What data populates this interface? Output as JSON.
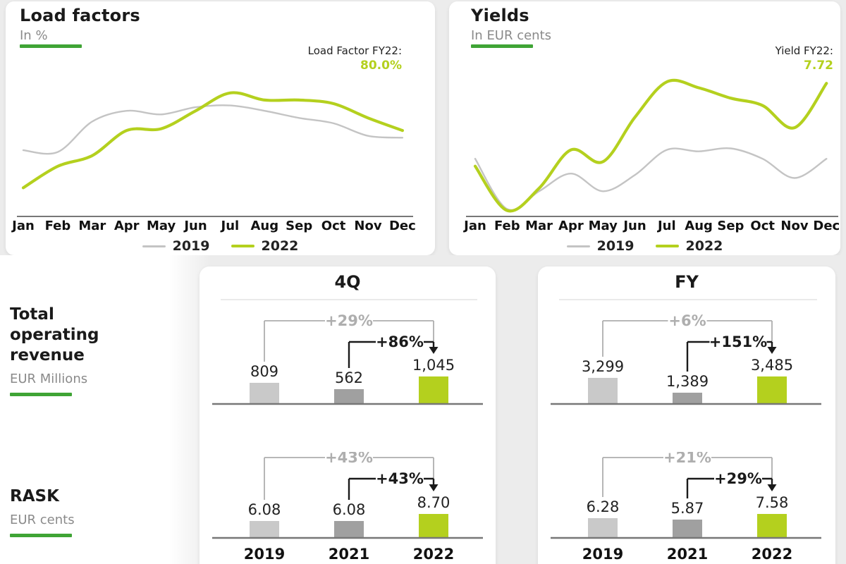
{
  "colors": {
    "green": "#b4d01e",
    "rule_green": "#3fa435",
    "line_2019": "#c4c4c4",
    "bar_2019": "#c9c9c9",
    "bar_2021": "#a0a0a0",
    "bar_2022": "#b4d01e",
    "pct_gray": "#aeaeae",
    "text_dark": "#1a1a1a",
    "text_gray": "#8a8a8a",
    "axis": "#4a4a4a",
    "baseline": "#777777",
    "page_bg": "#ececec"
  },
  "chart_data": [
    {
      "id": "load_factors",
      "type": "line",
      "title": "Load factors",
      "subtitle": "In %",
      "annotation": {
        "label": "Load Factor FY22:",
        "value": "80.0%"
      },
      "x": [
        "Jan",
        "Feb",
        "Mar",
        "Apr",
        "May",
        "Jun",
        "Jul",
        "Aug",
        "Sep",
        "Oct",
        "Nov",
        "Dec"
      ],
      "ylim": [
        54,
        92
      ],
      "grid": false,
      "legend_position": "bottom",
      "series": [
        {
          "name": "2019",
          "values": [
            72.5,
            72,
            80.5,
            83.5,
            82.5,
            84.5,
            85,
            83.5,
            81.5,
            80,
            76.5,
            76
          ]
        },
        {
          "name": "2022",
          "values": [
            62,
            68,
            71,
            78,
            78.5,
            83.5,
            88.5,
            86.5,
            86.5,
            85.5,
            81.5,
            78
          ]
        }
      ]
    },
    {
      "id": "yields",
      "type": "line",
      "title": "Yields",
      "subtitle": "In EUR cents",
      "annotation": {
        "label": "Yield FY22:",
        "value": "7.72"
      },
      "x": [
        "Jan",
        "Feb",
        "Mar",
        "Apr",
        "May",
        "Jun",
        "Jul",
        "Aug",
        "Sep",
        "Oct",
        "Nov",
        "Dec"
      ],
      "ylim": [
        4.6,
        9.2
      ],
      "grid": false,
      "legend_position": "bottom",
      "series": [
        {
          "name": "2019",
          "values": [
            6.55,
            4.85,
            5.45,
            6.05,
            5.45,
            6.0,
            6.85,
            6.8,
            6.9,
            6.55,
            5.9,
            6.55
          ]
        },
        {
          "name": "2022",
          "values": [
            6.3,
            4.8,
            5.55,
            6.85,
            6.45,
            7.95,
            9.15,
            8.95,
            8.6,
            8.35,
            7.6,
            9.1
          ]
        }
      ]
    },
    {
      "id": "4Q",
      "type": "bar",
      "title": "4Q",
      "categories": [
        "2019",
        "2021",
        "2022"
      ],
      "rows": [
        {
          "metric": "Total operating revenue",
          "unit": "EUR Millions",
          "values": [
            809,
            562,
            1045
          ],
          "labels": [
            "809",
            "562",
            "1,045"
          ],
          "pct_2019_vs_2022": "+29%",
          "pct_2021_vs_2022": "+86%"
        },
        {
          "metric": "RASK",
          "unit": "EUR cents",
          "values": [
            6.08,
            6.08,
            8.7
          ],
          "labels": [
            "6.08",
            "6.08",
            "8.70"
          ],
          "pct_2019_vs_2022": "+43%",
          "pct_2021_vs_2022": "+43%"
        }
      ]
    },
    {
      "id": "FY",
      "type": "bar",
      "title": "FY",
      "categories": [
        "2019",
        "2021",
        "2022"
      ],
      "rows": [
        {
          "metric": "Total operating revenue",
          "unit": "EUR Millions",
          "values": [
            3299,
            1389,
            3485
          ],
          "labels": [
            "3,299",
            "1,389",
            "3,485"
          ],
          "pct_2019_vs_2022": "+6%",
          "pct_2021_vs_2022": "+151%"
        },
        {
          "metric": "RASK",
          "unit": "EUR cents",
          "values": [
            6.28,
            5.87,
            7.58
          ],
          "labels": [
            "6.28",
            "5.87",
            "7.58"
          ],
          "pct_2019_vs_2022": "+21%",
          "pct_2021_vs_2022": "+29%"
        }
      ]
    }
  ],
  "row_labels": [
    {
      "title": "Total operating revenue",
      "unit": "EUR Millions"
    },
    {
      "title": "RASK",
      "unit": "EUR cents"
    }
  ]
}
